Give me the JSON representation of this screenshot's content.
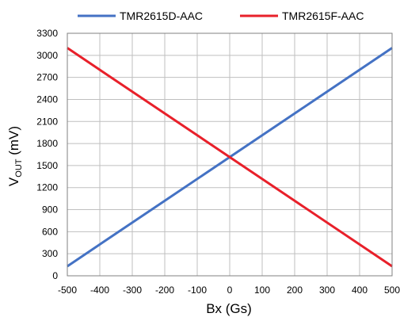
{
  "chart_data": {
    "type": "line",
    "xlabel": "Bx (Gs)",
    "ylabel": {
      "main": "V",
      "sub": "OUT",
      "unit": " (mV)"
    },
    "xlim": [
      -500,
      500
    ],
    "ylim": [
      0,
      3300
    ],
    "xticks": [
      -500,
      -400,
      -300,
      -200,
      -100,
      0,
      100,
      200,
      300,
      400,
      500
    ],
    "yticks": [
      0,
      300,
      600,
      900,
      1200,
      1500,
      1800,
      2100,
      2400,
      2700,
      3000,
      3300
    ],
    "grid": true,
    "legend_position": "top",
    "series": [
      {
        "name": "TMR2615D-AAC",
        "color": "#4472C4",
        "x": [
          -500,
          0,
          500
        ],
        "y": [
          130,
          1615,
          3100
        ]
      },
      {
        "name": "TMR2615F-AAC",
        "color": "#E8202A",
        "x": [
          -500,
          0,
          500
        ],
        "y": [
          3100,
          1615,
          130
        ]
      }
    ]
  }
}
